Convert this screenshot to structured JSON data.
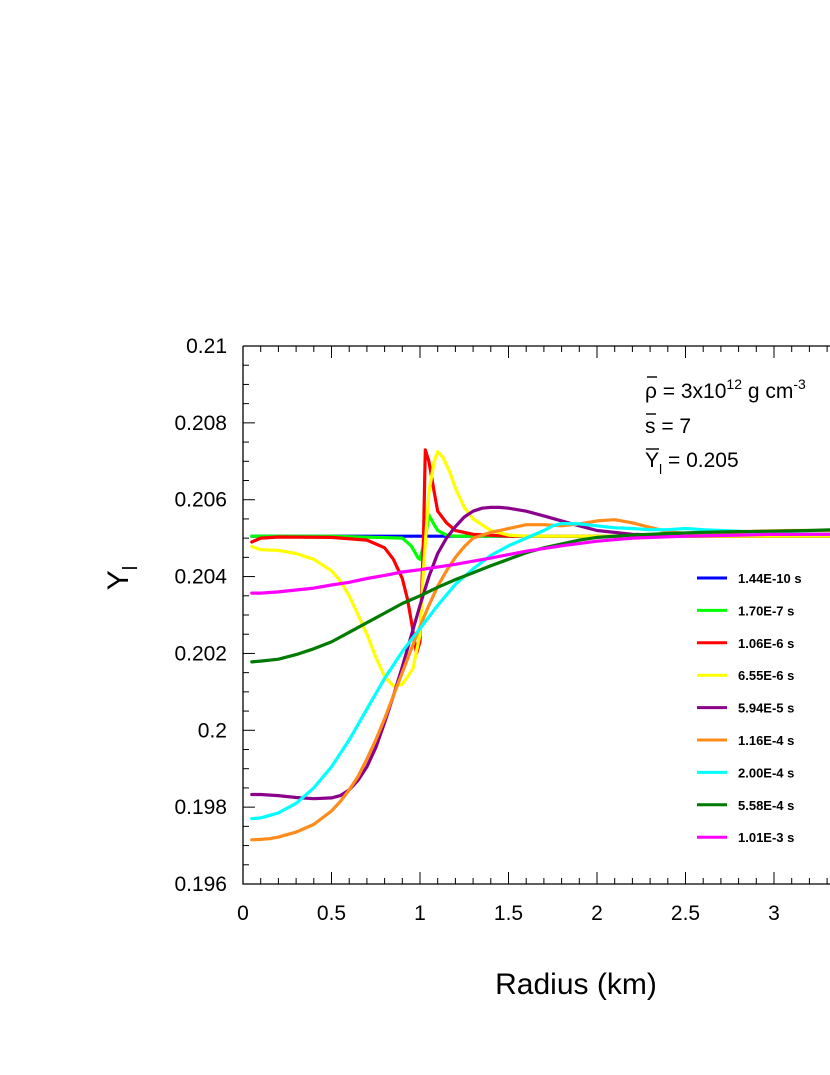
{
  "chart_data": {
    "type": "line",
    "xlabel": "Radius (km)",
    "ylabel": "Y",
    "ylabel_subscript": "l",
    "xlim": [
      0,
      3.35
    ],
    "ylim": [
      0.196,
      0.21
    ],
    "x_ticks": [
      "0",
      "0.5",
      "1",
      "1.5",
      "2",
      "2.5",
      "3"
    ],
    "y_ticks": [
      "0.196",
      "0.198",
      "0.2",
      "0.202",
      "0.204",
      "0.206",
      "0.208",
      "0.21"
    ],
    "grid": false,
    "legend_position": "right",
    "annotations": {
      "rho": {
        "base": "ρ = 3x10",
        "sup": "12",
        "tail": " g cm",
        "unit_sup": "-3"
      },
      "s": "s = 7",
      "yl": {
        "base": "Y",
        "sub": "l",
        "tail": " = 0.205"
      }
    },
    "series": [
      {
        "name": "1.44E-10 s",
        "color": "#0000ff",
        "x": [
          0.05,
          0.5,
          1.0,
          1.5,
          2.0,
          2.5,
          3.0,
          3.35
        ],
        "y": [
          0.20505,
          0.20505,
          0.20505,
          0.20505,
          0.20505,
          0.20505,
          0.20505,
          0.20505
        ]
      },
      {
        "name": "1.70E-7 s",
        "color": "#00ff00",
        "x": [
          0.05,
          0.5,
          0.9,
          0.95,
          0.99,
          1.0,
          1.03,
          1.05,
          1.08,
          1.1,
          1.15,
          1.2,
          1.3,
          1.5,
          2.0,
          3.35
        ],
        "y": [
          0.20505,
          0.20505,
          0.205,
          0.2048,
          0.20448,
          0.20445,
          0.205,
          0.2056,
          0.20535,
          0.2052,
          0.20508,
          0.20505,
          0.20505,
          0.20505,
          0.20505,
          0.20505
        ]
      },
      {
        "name": "1.06E-6 s",
        "color": "#ff0000",
        "x": [
          0.05,
          0.1,
          0.2,
          0.5,
          0.7,
          0.8,
          0.85,
          0.9,
          0.93,
          0.96,
          0.98,
          1.0,
          1.02,
          1.03,
          1.05,
          1.08,
          1.1,
          1.15,
          1.2,
          1.3,
          1.5,
          2.0,
          3.35
        ],
        "y": [
          0.2049,
          0.205,
          0.20503,
          0.20502,
          0.20495,
          0.20475,
          0.20445,
          0.20395,
          0.2034,
          0.2026,
          0.202,
          0.2023,
          0.205,
          0.2073,
          0.207,
          0.2062,
          0.2057,
          0.2054,
          0.2052,
          0.2051,
          0.20505,
          0.20505,
          0.20505
        ]
      },
      {
        "name": "6.55E-6 s",
        "color": "#ffff00",
        "x": [
          0.05,
          0.1,
          0.2,
          0.3,
          0.4,
          0.5,
          0.55,
          0.6,
          0.65,
          0.7,
          0.75,
          0.8,
          0.85,
          0.9,
          0.93,
          0.96,
          1.0,
          1.02,
          1.05,
          1.08,
          1.1,
          1.13,
          1.17,
          1.2,
          1.25,
          1.3,
          1.4,
          1.5,
          1.6,
          1.8,
          2.0,
          2.5,
          3.0,
          3.35
        ],
        "y": [
          0.20478,
          0.2047,
          0.20468,
          0.2046,
          0.20445,
          0.20415,
          0.20388,
          0.2035,
          0.203,
          0.2025,
          0.2019,
          0.2014,
          0.20115,
          0.2012,
          0.2014,
          0.2016,
          0.2025,
          0.2042,
          0.2062,
          0.207,
          0.20725,
          0.2071,
          0.2067,
          0.2063,
          0.2058,
          0.2055,
          0.2052,
          0.20508,
          0.20505,
          0.20505,
          0.20505,
          0.20505,
          0.20505,
          0.20505
        ]
      },
      {
        "name": "5.94E-5 s",
        "color": "#8b008b",
        "x": [
          0.05,
          0.1,
          0.2,
          0.3,
          0.4,
          0.5,
          0.55,
          0.6,
          0.65,
          0.7,
          0.75,
          0.8,
          0.85,
          0.9,
          0.95,
          1.0,
          1.05,
          1.1,
          1.15,
          1.2,
          1.25,
          1.3,
          1.35,
          1.4,
          1.45,
          1.5,
          1.6,
          1.7,
          1.8,
          1.9,
          2.0,
          2.2,
          2.4,
          2.6,
          2.8,
          3.0,
          3.2,
          3.35
        ],
        "y": [
          0.19833,
          0.19833,
          0.1983,
          0.19825,
          0.19822,
          0.19824,
          0.1983,
          0.19845,
          0.1987,
          0.19905,
          0.19955,
          0.2002,
          0.2009,
          0.20165,
          0.20245,
          0.20325,
          0.204,
          0.2046,
          0.205,
          0.2053,
          0.20555,
          0.2057,
          0.20578,
          0.2058,
          0.2058,
          0.20578,
          0.2057,
          0.20558,
          0.20545,
          0.20532,
          0.2052,
          0.2051,
          0.20507,
          0.20508,
          0.2051,
          0.2051,
          0.2051,
          0.2051
        ]
      },
      {
        "name": "1.16E-4 s",
        "color": "#ff8c1a",
        "x": [
          0.05,
          0.1,
          0.15,
          0.2,
          0.3,
          0.4,
          0.5,
          0.55,
          0.6,
          0.65,
          0.7,
          0.75,
          0.8,
          0.85,
          0.9,
          0.95,
          1.0,
          1.05,
          1.1,
          1.15,
          1.2,
          1.25,
          1.3,
          1.4,
          1.5,
          1.6,
          1.7,
          1.8,
          1.9,
          2.0,
          2.1,
          2.2,
          2.3,
          2.4,
          2.5,
          2.7,
          2.9,
          3.1,
          3.35
        ],
        "y": [
          0.19715,
          0.19716,
          0.19718,
          0.19722,
          0.19735,
          0.19755,
          0.1979,
          0.19815,
          0.19845,
          0.1988,
          0.19925,
          0.19975,
          0.2003,
          0.2009,
          0.2015,
          0.2021,
          0.2027,
          0.20325,
          0.20375,
          0.20415,
          0.2045,
          0.20478,
          0.205,
          0.20515,
          0.20525,
          0.20535,
          0.20535,
          0.20532,
          0.20537,
          0.20545,
          0.20548,
          0.2054,
          0.20528,
          0.20517,
          0.20512,
          0.20512,
          0.20518,
          0.2052,
          0.2052
        ]
      },
      {
        "name": "2.00E-4 s",
        "color": "#00ffff",
        "x": [
          0.05,
          0.1,
          0.2,
          0.3,
          0.4,
          0.5,
          0.6,
          0.7,
          0.8,
          0.9,
          1.0,
          1.1,
          1.2,
          1.3,
          1.4,
          1.5,
          1.6,
          1.7,
          1.75,
          1.8,
          1.9,
          2.0,
          2.1,
          2.2,
          2.3,
          2.4,
          2.5,
          2.6,
          2.8,
          3.0,
          3.2,
          3.35
        ],
        "y": [
          0.1977,
          0.19772,
          0.19785,
          0.1981,
          0.1985,
          0.19905,
          0.19975,
          0.20055,
          0.20135,
          0.20205,
          0.20265,
          0.20325,
          0.2038,
          0.2042,
          0.20455,
          0.2048,
          0.205,
          0.2052,
          0.20532,
          0.20538,
          0.20537,
          0.20532,
          0.20527,
          0.20525,
          0.20522,
          0.20522,
          0.20525,
          0.20522,
          0.20518,
          0.20512,
          0.2051,
          0.2051
        ]
      },
      {
        "name": "5.58E-4 s",
        "color": "#007a00",
        "x": [
          0.05,
          0.1,
          0.2,
          0.3,
          0.4,
          0.5,
          0.6,
          0.7,
          0.8,
          0.9,
          1.0,
          1.1,
          1.2,
          1.3,
          1.4,
          1.5,
          1.6,
          1.7,
          1.8,
          1.9,
          2.0,
          2.2,
          2.4,
          2.6,
          2.8,
          3.0,
          3.2,
          3.35
        ],
        "y": [
          0.20178,
          0.2018,
          0.20185,
          0.20197,
          0.20212,
          0.2023,
          0.20255,
          0.2028,
          0.20305,
          0.2033,
          0.2035,
          0.20372,
          0.20392,
          0.2041,
          0.20428,
          0.20445,
          0.20462,
          0.20475,
          0.20485,
          0.20495,
          0.20502,
          0.20508,
          0.20512,
          0.20515,
          0.20517,
          0.20518,
          0.2052,
          0.20522
        ]
      },
      {
        "name": "1.01E-3 s",
        "color": "#ff00ff",
        "x": [
          0.05,
          0.1,
          0.2,
          0.3,
          0.4,
          0.5,
          0.6,
          0.7,
          0.8,
          0.9,
          1.0,
          1.2,
          1.4,
          1.6,
          1.8,
          2.0,
          2.2,
          2.5,
          2.8,
          3.0,
          3.2,
          3.35
        ],
        "y": [
          0.20357,
          0.20357,
          0.2036,
          0.20365,
          0.2037,
          0.20378,
          0.20385,
          0.20395,
          0.20403,
          0.20412,
          0.20418,
          0.20432,
          0.20448,
          0.20466,
          0.2048,
          0.20492,
          0.205,
          0.20505,
          0.20508,
          0.2051,
          0.2051,
          0.2051
        ]
      }
    ]
  }
}
